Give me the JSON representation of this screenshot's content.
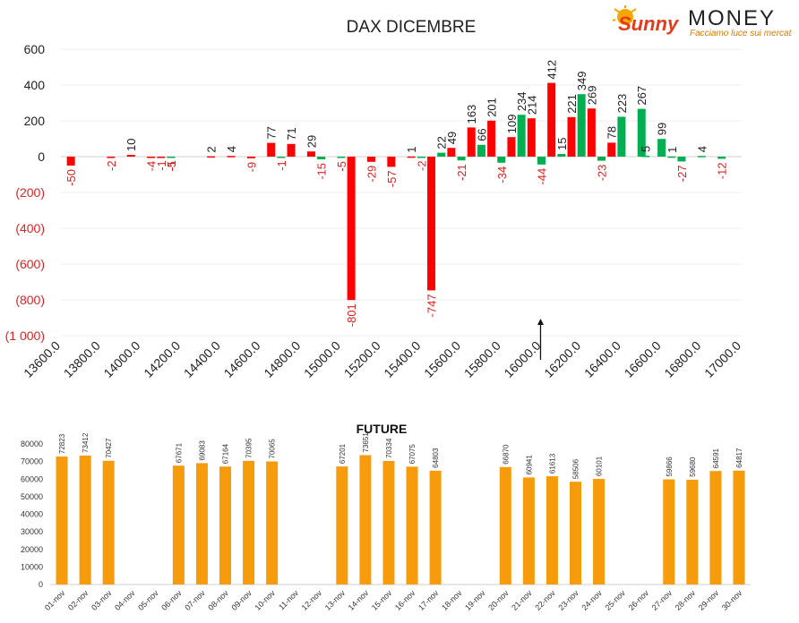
{
  "logo": {
    "text_a": "Sunny",
    "text_b": "MONEY",
    "tagline": "Facciamo luce sui mercati"
  },
  "colors": {
    "put": "#ff0000",
    "call": "#00b050",
    "future": "#f59b0c",
    "neg_label": "#e02020",
    "text": "#222222",
    "grid": "#eeeeee"
  },
  "chart_data": [
    {
      "type": "bar",
      "title": "DAX DICEMBRE",
      "ylim": [
        -1000,
        600
      ],
      "yticks": [
        {
          "v": 600,
          "label": "600"
        },
        {
          "v": 400,
          "label": "400"
        },
        {
          "v": 200,
          "label": "200"
        },
        {
          "v": 0,
          "label": "0"
        },
        {
          "v": -200,
          "label": "(200)"
        },
        {
          "v": -400,
          "label": "(400)"
        },
        {
          "v": -600,
          "label": "(600)"
        },
        {
          "v": -800,
          "label": "(800)"
        },
        {
          "v": -1000,
          "label": "(1 000)"
        }
      ],
      "xlim": [
        13600,
        17000
      ],
      "xticks": [
        "13600.0",
        "13800.0",
        "14000.0",
        "14200.0",
        "14400.0",
        "14600.0",
        "14800.0",
        "15000.0",
        "15200.0",
        "15400.0",
        "15600.0",
        "15800.0",
        "16000.0",
        "16200.0",
        "16400.0",
        "16600.0",
        "16800.0",
        "17000.0"
      ],
      "grid": true,
      "marker_strike": 16000,
      "series": [
        {
          "key": "put",
          "points": [
            {
              "x": 13650,
              "y": -50,
              "label": "-50"
            },
            {
              "x": 13850,
              "y": -2,
              "label": "-2"
            },
            {
              "x": 13950,
              "y": 10,
              "label": "10"
            },
            {
              "x": 14050,
              "y": -4,
              "label": "-4"
            },
            {
              "x": 14100,
              "y": -1,
              "label": "-1"
            },
            {
              "x": 14150,
              "y": -1,
              "label": "-1"
            },
            {
              "x": 14350,
              "y": 2,
              "label": "2"
            },
            {
              "x": 14450,
              "y": 4,
              "label": "4"
            },
            {
              "x": 14550,
              "y": -9,
              "label": "-9"
            },
            {
              "x": 14650,
              "y": 77,
              "label": "77"
            },
            {
              "x": 14750,
              "y": 71,
              "label": "71"
            },
            {
              "x": 14850,
              "y": 29,
              "label": "29"
            },
            {
              "x": 15050,
              "y": -801,
              "label": "-801"
            },
            {
              "x": 15150,
              "y": -29,
              "label": "-29"
            },
            {
              "x": 15250,
              "y": -57,
              "label": "-57"
            },
            {
              "x": 15350,
              "y": 1,
              "label": "1"
            },
            {
              "x": 15450,
              "y": -747,
              "label": "-747"
            },
            {
              "x": 15550,
              "y": 49,
              "label": "49"
            },
            {
              "x": 15650,
              "y": 163,
              "label": "163"
            },
            {
              "x": 15750,
              "y": 201,
              "label": "201"
            },
            {
              "x": 15850,
              "y": 109,
              "label": "109"
            },
            {
              "x": 15950,
              "y": 214,
              "label": "214"
            },
            {
              "x": 16050,
              "y": 412,
              "label": "412"
            },
            {
              "x": 16150,
              "y": 221,
              "label": "221"
            },
            {
              "x": 16250,
              "y": 269,
              "label": "269"
            },
            {
              "x": 16350,
              "y": 78,
              "label": "78"
            }
          ]
        },
        {
          "key": "call",
          "points": [
            {
              "x": 14150,
              "y": -5,
              "label": "-5"
            },
            {
              "x": 14700,
              "y": -1,
              "label": "-1"
            },
            {
              "x": 14900,
              "y": -15,
              "label": "-15"
            },
            {
              "x": 15000,
              "y": -5,
              "label": "-5"
            },
            {
              "x": 15400,
              "y": -2,
              "label": "-2"
            },
            {
              "x": 15500,
              "y": 22,
              "label": "22"
            },
            {
              "x": 15600,
              "y": -21,
              "label": "-21"
            },
            {
              "x": 15700,
              "y": 66,
              "label": "66"
            },
            {
              "x": 15800,
              "y": -34,
              "label": "-34"
            },
            {
              "x": 15900,
              "y": 234,
              "label": "234"
            },
            {
              "x": 16000,
              "y": -44,
              "label": "-44"
            },
            {
              "x": 16100,
              "y": 15,
              "label": "15"
            },
            {
              "x": 16200,
              "y": 349,
              "label": "349"
            },
            {
              "x": 16300,
              "y": -23,
              "label": "-23"
            },
            {
              "x": 16400,
              "y": 223,
              "label": "223"
            },
            {
              "x": 16500,
              "y": 267,
              "label": "267"
            },
            {
              "x": 16520,
              "y": 5,
              "label": "5"
            },
            {
              "x": 16600,
              "y": 99,
              "label": "99"
            },
            {
              "x": 16650,
              "y": 1,
              "label": "1"
            },
            {
              "x": 16700,
              "y": -27,
              "label": "-27"
            },
            {
              "x": 16800,
              "y": 4,
              "label": "4"
            },
            {
              "x": 16900,
              "y": -12,
              "label": "-12"
            }
          ]
        }
      ]
    },
    {
      "type": "bar",
      "title": "FUTURE",
      "ylim": [
        0,
        80000
      ],
      "yticks": [
        "0",
        "10000",
        "20000",
        "30000",
        "40000",
        "50000",
        "60000",
        "70000",
        "80000"
      ],
      "categories": [
        "01-nov",
        "02-nov",
        "03-nov",
        "04-nov",
        "05-nov",
        "06-nov",
        "07-nov",
        "08-nov",
        "09-nov",
        "10-nov",
        "11-nov",
        "12-nov",
        "13-nov",
        "14-nov",
        "15-nov",
        "16-nov",
        "17-nov",
        "18-nov",
        "19-nov",
        "20-nov",
        "21-nov",
        "22-nov",
        "23-nov",
        "24-nov",
        "25-nov",
        "26-nov",
        "27-nov",
        "28-nov",
        "29-nov",
        "30-nov"
      ],
      "values": [
        72823,
        73412,
        70427,
        null,
        null,
        67671,
        69083,
        67164,
        70395,
        70065,
        null,
        null,
        67201,
        73651,
        70334,
        67075,
        64803,
        null,
        null,
        66870,
        60941,
        61613,
        58506,
        60101,
        null,
        null,
        59866,
        59680,
        64591,
        64817
      ]
    }
  ]
}
